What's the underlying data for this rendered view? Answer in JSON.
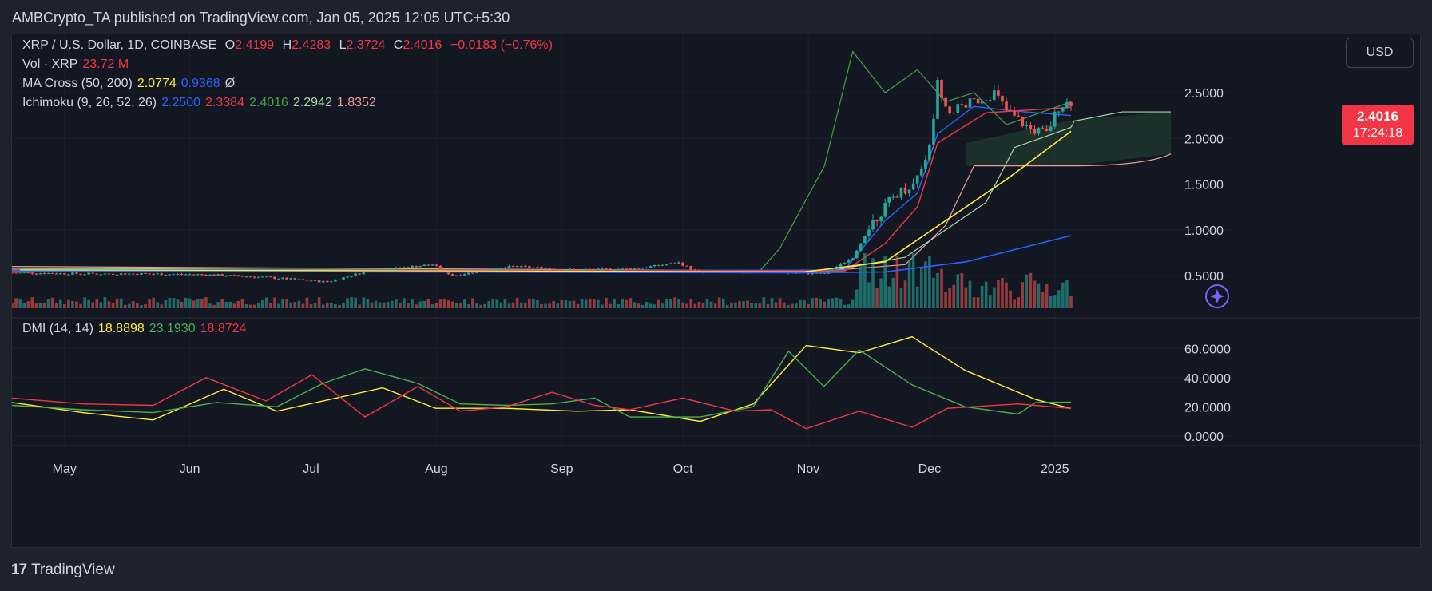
{
  "header": {
    "published": "AMBCrypto_TA published on TradingView.com, Jan 05, 2025 12:05 UTC+5:30"
  },
  "legend": {
    "symbol": "XRP / U.S. Dollar, 1D, COINBASE",
    "o_label": "O",
    "o": "2.4199",
    "h_label": "H",
    "h": "2.4283",
    "l_label": "L",
    "l": "2.3724",
    "c_label": "C",
    "c": "2.4016",
    "change": "−0.0183 (−0.76%)",
    "vol_label": "Vol · XRP",
    "vol": "23.72 M",
    "ma_label": "MA Cross (50, 200)",
    "ma50": "2.0774",
    "ma200": "0.9368",
    "ma_flag": "Ø",
    "ichi_label": "Ichimoku (9, 26, 52, 26)",
    "ichi": [
      "2.2500",
      "2.3384",
      "2.4016",
      "2.2942",
      "1.8352"
    ],
    "dmi_label": "DMI (14, 14)",
    "dmi": [
      "18.8898",
      "23.1930",
      "18.8724"
    ]
  },
  "controls": {
    "currency": "USD"
  },
  "price_tag": {
    "price": "2.4016",
    "countdown": "17:24:18"
  },
  "footer": {
    "logo": "17",
    "brand": "TradingView"
  },
  "colors": {
    "up": "#26a69a",
    "down": "#ef5350",
    "tenkan": "#2962ff",
    "kijun": "#f23645",
    "chikou": "#43a047",
    "span_a": "#a5d6a7",
    "span_b": "#ef9a9a",
    "ma50": "#ffeb3b",
    "ma200": "#2962ff",
    "adx": "#ffeb3b",
    "di_plus": "#4caf50",
    "di_minus": "#f23645"
  },
  "chart_data": [
    {
      "type": "candlestick",
      "title": "XRP / U.S. Dollar, 1D, COINBASE",
      "x_ticks": [
        "May",
        "Jun",
        "Jul",
        "Aug",
        "Sep",
        "Oct",
        "Nov",
        "Dec",
        "2025"
      ],
      "y_ticks": [
        "0.5000",
        "1.0000",
        "1.5000",
        "2.0000",
        "2.5000"
      ],
      "ylim": [
        0.15,
        3.0
      ],
      "last_price": 2.4016,
      "price_path": [
        [
          "2024-04-20",
          0.53
        ],
        [
          "2024-05-05",
          0.52
        ],
        [
          "2024-05-20",
          0.52
        ],
        [
          "2024-06-05",
          0.51
        ],
        [
          "2024-06-20",
          0.48
        ],
        [
          "2024-07-05",
          0.43
        ],
        [
          "2024-07-15",
          0.55
        ],
        [
          "2024-07-31",
          0.62
        ],
        [
          "2024-08-05",
          0.5
        ],
        [
          "2024-08-20",
          0.6
        ],
        [
          "2024-09-05",
          0.56
        ],
        [
          "2024-09-20",
          0.58
        ],
        [
          "2024-09-30",
          0.64
        ],
        [
          "2024-10-05",
          0.53
        ],
        [
          "2024-10-20",
          0.54
        ],
        [
          "2024-11-05",
          0.52
        ],
        [
          "2024-11-12",
          0.7
        ],
        [
          "2024-11-17",
          1.1
        ],
        [
          "2024-11-23",
          1.4
        ],
        [
          "2024-11-27",
          1.5
        ],
        [
          "2024-12-01",
          1.9
        ],
        [
          "2024-12-03",
          2.6
        ],
        [
          "2024-12-06",
          2.3
        ],
        [
          "2024-12-12",
          2.4
        ],
        [
          "2024-12-17",
          2.5
        ],
        [
          "2024-12-20",
          2.3
        ],
        [
          "2024-12-26",
          2.1
        ],
        [
          "2024-12-30",
          2.05
        ],
        [
          "2025-01-02",
          2.35
        ],
        [
          "2025-01-05",
          2.4016
        ]
      ],
      "ma50": [
        [
          "2024-04-20",
          0.56
        ],
        [
          "2024-10-31",
          0.54
        ],
        [
          "2024-11-20",
          0.65
        ],
        [
          "2024-12-05",
          1.1
        ],
        [
          "2024-12-20",
          1.55
        ],
        [
          "2025-01-05",
          2.0774
        ]
      ],
      "ma200": [
        [
          "2024-04-20",
          0.55
        ],
        [
          "2024-10-31",
          0.53
        ],
        [
          "2024-11-20",
          0.54
        ],
        [
          "2024-12-10",
          0.65
        ],
        [
          "2025-01-05",
          0.9368
        ]
      ]
    },
    {
      "type": "line",
      "title": "DMI (14, 14)",
      "y_ticks": [
        "0.0000",
        "20.0000",
        "40.0000",
        "60.0000"
      ],
      "ylim": [
        -5,
        70
      ],
      "series": [
        {
          "name": "ADX",
          "values": [
            [
              0,
              23
            ],
            [
              20,
              16
            ],
            [
              40,
              11
            ],
            [
              60,
              32
            ],
            [
              75,
              17
            ],
            [
              90,
              25
            ],
            [
              105,
              33
            ],
            [
              120,
              19
            ],
            [
              140,
              19
            ],
            [
              160,
              17
            ],
            [
              175,
              18
            ],
            [
              195,
              10
            ],
            [
              210,
              22
            ],
            [
              225,
              62
            ],
            [
              240,
              57
            ],
            [
              255,
              68
            ],
            [
              270,
              45
            ],
            [
              290,
              25
            ],
            [
              300,
              18.8898
            ]
          ]
        },
        {
          "name": "+DI",
          "values": [
            [
              0,
              21
            ],
            [
              20,
              18
            ],
            [
              40,
              16
            ],
            [
              58,
              23
            ],
            [
              75,
              20
            ],
            [
              88,
              36
            ],
            [
              100,
              46
            ],
            [
              115,
              36
            ],
            [
              127,
              22
            ],
            [
              140,
              21
            ],
            [
              153,
              22
            ],
            [
              165,
              26
            ],
            [
              175,
              13
            ],
            [
              195,
              13
            ],
            [
              210,
              20
            ],
            [
              220,
              58
            ],
            [
              230,
              34
            ],
            [
              240,
              59
            ],
            [
              255,
              35
            ],
            [
              270,
              20
            ],
            [
              285,
              15
            ],
            [
              290,
              23
            ],
            [
              300,
              23.193
            ]
          ]
        },
        {
          "name": "-DI",
          "values": [
            [
              0,
              26
            ],
            [
              20,
              22
            ],
            [
              40,
              21
            ],
            [
              55,
              40
            ],
            [
              72,
              24
            ],
            [
              85,
              42
            ],
            [
              100,
              13
            ],
            [
              115,
              34
            ],
            [
              127,
              17
            ],
            [
              140,
              20
            ],
            [
              153,
              30
            ],
            [
              165,
              21
            ],
            [
              175,
              18
            ],
            [
              190,
              26
            ],
            [
              205,
              17
            ],
            [
              215,
              18
            ],
            [
              225,
              5
            ],
            [
              240,
              17
            ],
            [
              255,
              6
            ],
            [
              265,
              19
            ],
            [
              285,
              22
            ],
            [
              300,
              18.8724
            ]
          ]
        }
      ]
    }
  ]
}
